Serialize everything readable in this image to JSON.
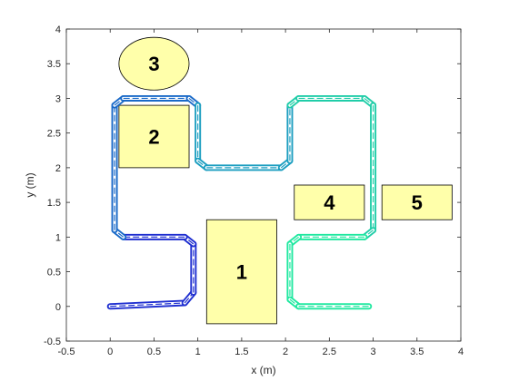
{
  "chart_data": {
    "type": "line",
    "title": "",
    "xlabel": "x (m)",
    "ylabel": "y (m)",
    "xlim": [
      -0.5,
      4
    ],
    "ylim": [
      -0.5,
      4
    ],
    "xticks": [
      -0.5,
      0,
      0.5,
      1,
      1.5,
      2,
      2.5,
      3,
      3.5,
      4
    ],
    "yticks": [
      -0.5,
      0,
      0.5,
      1,
      1.5,
      2,
      2.5,
      3,
      3.5,
      4
    ],
    "xtick_labels": [
      "-0.5",
      "0",
      "0.5",
      "1",
      "1.5",
      "2",
      "2.5",
      "3",
      "3.5",
      "4"
    ],
    "ytick_labels": [
      "-0.5",
      "0",
      "0.5",
      "1",
      "1.5",
      "2",
      "2.5",
      "3",
      "3.5",
      "4"
    ],
    "grid": false,
    "box": true,
    "path_colormap": [
      "#1f2fd0",
      "#1a6ac8",
      "#1c9ec0",
      "#20cda8",
      "#20e8a0"
    ],
    "path": [
      [
        0,
        0
      ],
      [
        0.85,
        0.05
      ],
      [
        0.95,
        0.2
      ],
      [
        0.95,
        0.9
      ],
      [
        0.85,
        1.0
      ],
      [
        0.15,
        1.0
      ],
      [
        0.05,
        1.1
      ],
      [
        0.05,
        2.9
      ],
      [
        0.15,
        3.0
      ],
      [
        0.9,
        3.0
      ],
      [
        1.0,
        2.9
      ],
      [
        1.0,
        2.1
      ],
      [
        1.1,
        2.0
      ],
      [
        1.95,
        2.0
      ],
      [
        2.05,
        2.1
      ],
      [
        2.05,
        2.9
      ],
      [
        2.15,
        3.0
      ],
      [
        2.9,
        3.0
      ],
      [
        3.0,
        2.9
      ],
      [
        3.0,
        1.1
      ],
      [
        2.9,
        1.0
      ],
      [
        2.15,
        1.0
      ],
      [
        2.05,
        0.9
      ],
      [
        2.05,
        0.1
      ],
      [
        2.15,
        0.0
      ],
      [
        2.95,
        0.0
      ]
    ],
    "obstacles": [
      {
        "label": "1",
        "shape": "rect",
        "x": [
          1.1,
          1.9
        ],
        "y": [
          -0.25,
          1.25
        ]
      },
      {
        "label": "2",
        "shape": "rect",
        "x": [
          0.1,
          0.9
        ],
        "y": [
          2.0,
          2.9
        ]
      },
      {
        "label": "3",
        "shape": "ellipse",
        "cx": 0.5,
        "cy": 3.5,
        "rx": 0.4,
        "ry": 0.38
      },
      {
        "label": "4",
        "shape": "rect",
        "x": [
          2.1,
          2.9
        ],
        "y": [
          1.25,
          1.75
        ]
      },
      {
        "label": "5",
        "shape": "rect",
        "x": [
          3.1,
          3.9
        ],
        "y": [
          1.25,
          1.75
        ]
      }
    ],
    "obstacle_fill": "#ffffaa",
    "obstacle_stroke": "#000000"
  }
}
